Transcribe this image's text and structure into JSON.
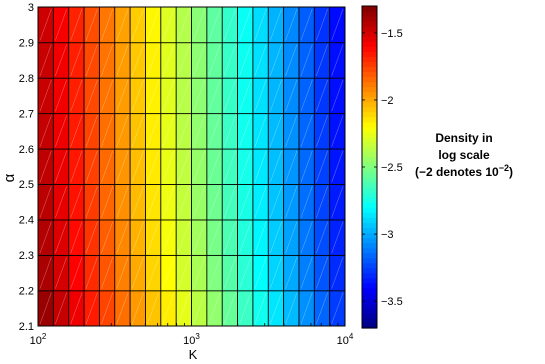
{
  "chart_data": {
    "type": "heatmap",
    "xlabel": "K",
    "ylabel": "α",
    "x_scale": "log",
    "x_range": [
      100,
      10000
    ],
    "y_range": [
      2.1,
      3.0
    ],
    "x_ticks": [
      {
        "value": 100,
        "base": "10",
        "exp": "2"
      },
      {
        "value": 1000,
        "base": "10",
        "exp": "3"
      },
      {
        "value": 10000,
        "base": "10",
        "exp": "4"
      }
    ],
    "y_ticks": [
      2.1,
      2.2,
      2.3,
      2.4,
      2.5,
      2.6,
      2.7,
      2.8,
      2.9,
      3.0
    ],
    "y_tick_labels": [
      "2.1",
      "2.2",
      "2.3",
      "2.4",
      "2.5",
      "2.6",
      "2.7",
      "2.8",
      "2.9",
      "3"
    ],
    "grid": "cell edges drawn in black",
    "colormap": "jet",
    "x_cells": 20,
    "y_cells": 9,
    "density_log10": {
      "rows_from_bottom": [
        [
          -1.36,
          -1.46,
          -1.56,
          -1.66,
          -1.76,
          -1.86,
          -1.96,
          -2.06,
          -2.16,
          -2.26,
          -2.36,
          -2.46,
          -2.56,
          -2.66,
          -2.76,
          -2.86,
          -2.96,
          -3.06,
          -3.16,
          -3.26
        ],
        [
          -1.4,
          -1.5,
          -1.6,
          -1.7,
          -1.8,
          -1.9,
          -2.0,
          -2.1,
          -2.2,
          -2.3,
          -2.4,
          -2.5,
          -2.6,
          -2.7,
          -2.8,
          -2.9,
          -3.0,
          -3.1,
          -3.2,
          -3.3
        ],
        [
          -1.42,
          -1.52,
          -1.62,
          -1.72,
          -1.82,
          -1.92,
          -2.02,
          -2.12,
          -2.22,
          -2.32,
          -2.42,
          -2.52,
          -2.62,
          -2.72,
          -2.82,
          -2.92,
          -3.02,
          -3.12,
          -3.22,
          -3.32
        ],
        [
          -1.44,
          -1.54,
          -1.64,
          -1.74,
          -1.84,
          -1.94,
          -2.04,
          -2.14,
          -2.24,
          -2.34,
          -2.44,
          -2.54,
          -2.64,
          -2.74,
          -2.84,
          -2.94,
          -3.04,
          -3.14,
          -3.24,
          -3.34
        ],
        [
          -1.45,
          -1.55,
          -1.65,
          -1.75,
          -1.85,
          -1.95,
          -2.05,
          -2.15,
          -2.25,
          -2.35,
          -2.45,
          -2.55,
          -2.65,
          -2.75,
          -2.85,
          -2.95,
          -3.05,
          -3.15,
          -3.25,
          -3.35
        ],
        [
          -1.46,
          -1.56,
          -1.66,
          -1.76,
          -1.86,
          -1.96,
          -2.06,
          -2.16,
          -2.26,
          -2.36,
          -2.46,
          -2.56,
          -2.66,
          -2.76,
          -2.86,
          -2.96,
          -3.06,
          -3.16,
          -3.26,
          -3.36
        ],
        [
          -1.47,
          -1.57,
          -1.67,
          -1.77,
          -1.87,
          -1.97,
          -2.07,
          -2.17,
          -2.27,
          -2.37,
          -2.47,
          -2.57,
          -2.67,
          -2.77,
          -2.87,
          -2.97,
          -3.07,
          -3.17,
          -3.27,
          -3.37
        ],
        [
          -1.47,
          -1.57,
          -1.67,
          -1.77,
          -1.87,
          -1.97,
          -2.07,
          -2.17,
          -2.27,
          -2.37,
          -2.47,
          -2.57,
          -2.67,
          -2.77,
          -2.87,
          -2.97,
          -3.07,
          -3.17,
          -3.27,
          -3.37
        ],
        [
          -1.48,
          -1.58,
          -1.68,
          -1.78,
          -1.88,
          -1.98,
          -2.08,
          -2.18,
          -2.28,
          -2.38,
          -2.48,
          -2.58,
          -2.68,
          -2.78,
          -2.88,
          -2.98,
          -3.08,
          -3.18,
          -3.28,
          -3.38
        ]
      ]
    },
    "colorbar": {
      "range": [
        -3.7,
        -1.3
      ],
      "ticks": [
        -1.5,
        -2,
        -2.5,
        -3,
        -3.5
      ],
      "tick_labels": [
        "−1.5",
        "−2",
        "−2.5",
        "−3",
        "−3.5"
      ],
      "title_lines": [
        "Density in",
        "log scale"
      ],
      "title_line3": {
        "prefix": "(−2 denotes 10",
        "sup": "−2",
        "suffix": ")"
      }
    }
  }
}
